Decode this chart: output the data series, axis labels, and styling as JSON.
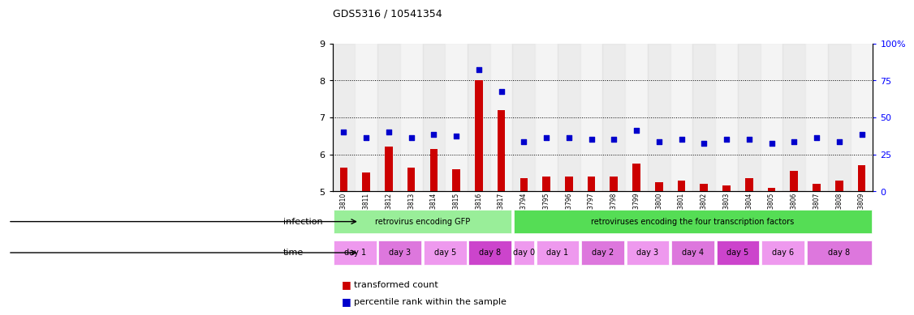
{
  "title": "GDS5316 / 10541354",
  "samples": [
    "GSM943810",
    "GSM943811",
    "GSM943812",
    "GSM943813",
    "GSM943814",
    "GSM943815",
    "GSM943816",
    "GSM943817",
    "GSM943794",
    "GSM943795",
    "GSM943796",
    "GSM943797",
    "GSM943798",
    "GSM943799",
    "GSM943800",
    "GSM943801",
    "GSM943802",
    "GSM943803",
    "GSM943804",
    "GSM943805",
    "GSM943806",
    "GSM943807",
    "GSM943808",
    "GSM943809"
  ],
  "bar_values": [
    5.65,
    5.5,
    6.2,
    5.65,
    6.15,
    5.6,
    8.0,
    7.2,
    5.35,
    5.4,
    5.4,
    5.4,
    5.4,
    5.75,
    5.25,
    5.3,
    5.2,
    5.15,
    5.35,
    5.1,
    5.55,
    5.2,
    5.3,
    5.7
  ],
  "dot_values": [
    6.6,
    6.45,
    6.6,
    6.45,
    6.55,
    6.5,
    8.3,
    7.7,
    6.35,
    6.45,
    6.45,
    6.4,
    6.4,
    6.65,
    6.35,
    6.4,
    6.3,
    6.4,
    6.4,
    6.3,
    6.35,
    6.45,
    6.35,
    6.55
  ],
  "ylim": [
    5,
    9
  ],
  "y2lim": [
    0,
    100
  ],
  "yticks": [
    5,
    6,
    7,
    8,
    9
  ],
  "y2ticks": [
    0,
    25,
    50,
    75,
    100
  ],
  "bar_color": "#cc0000",
  "dot_color": "#0000cc",
  "infection_groups": [
    {
      "label": "retrovirus encoding GFP",
      "start": 0,
      "end": 8,
      "color": "#99ee99"
    },
    {
      "label": "retroviruses encoding the four transcription factors",
      "start": 8,
      "end": 24,
      "color": "#55dd55"
    }
  ],
  "time_groups": [
    {
      "label": "day 1",
      "start": 0,
      "end": 2,
      "color": "#ee99ee"
    },
    {
      "label": "day 3",
      "start": 2,
      "end": 4,
      "color": "#dd77dd"
    },
    {
      "label": "day 5",
      "start": 4,
      "end": 6,
      "color": "#ee99ee"
    },
    {
      "label": "day 8",
      "start": 6,
      "end": 8,
      "color": "#cc44cc"
    },
    {
      "label": "day 0",
      "start": 8,
      "end": 9,
      "color": "#ee99ee"
    },
    {
      "label": "day 1",
      "start": 9,
      "end": 11,
      "color": "#ee99ee"
    },
    {
      "label": "day 2",
      "start": 11,
      "end": 13,
      "color": "#dd77dd"
    },
    {
      "label": "day 3",
      "start": 13,
      "end": 15,
      "color": "#ee99ee"
    },
    {
      "label": "day 4",
      "start": 15,
      "end": 17,
      "color": "#dd77dd"
    },
    {
      "label": "day 5",
      "start": 17,
      "end": 19,
      "color": "#cc44cc"
    },
    {
      "label": "day 6",
      "start": 19,
      "end": 21,
      "color": "#ee99ee"
    },
    {
      "label": "day 8",
      "start": 21,
      "end": 24,
      "color": "#dd77dd"
    }
  ],
  "legend_bar_label": "transformed count",
  "legend_dot_label": "percentile rank within the sample",
  "infection_label": "infection",
  "time_label": "time"
}
